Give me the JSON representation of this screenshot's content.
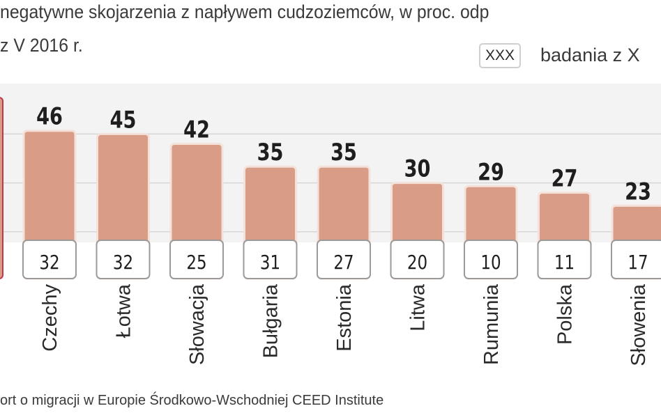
{
  "title_line1": "negatywne skojarzenia z napływem cudzoziemców, w proc. odp",
  "title_line2": "z V 2016 r.",
  "legend": {
    "box_label": "XXX",
    "text": "badania z X"
  },
  "source": "ort o migracji w Europie Środkowo-Wschodniej CEED Institute",
  "colors": {
    "bar": "#d99c87",
    "highlight_outline": "#c0384a",
    "plot_background": "#f3f3f3",
    "gridline": "#d6d6d6"
  },
  "chart_data": {
    "type": "bar",
    "categories": [
      "Czechy",
      "Łotwa",
      "Słowacja",
      "Bułgaria",
      "Estonia",
      "Litwa",
      "Rumunia",
      "Polska",
      "Słowenia"
    ],
    "series": [
      {
        "values": [
          46,
          45,
          42,
          35,
          35,
          30,
          29,
          27,
          23
        ]
      },
      {
        "name": "badania z X",
        "values": [
          32,
          32,
          25,
          31,
          27,
          20,
          10,
          11,
          17
        ]
      }
    ],
    "ylim": [
      0,
      50
    ],
    "gridlines": [
      15,
      30,
      45
    ],
    "grid": true,
    "legend_placement": "top-right"
  }
}
